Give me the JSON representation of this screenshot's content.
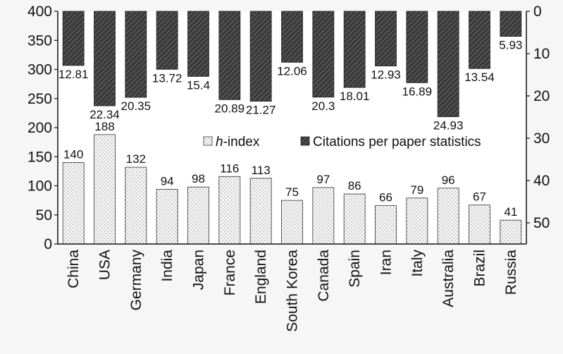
{
  "chart_data": {
    "type": "bar",
    "title": "",
    "categories": [
      "China",
      "USA",
      "Germany",
      "India",
      "Japan",
      "France",
      "England",
      "South Korea",
      "Canada",
      "Spain",
      "Iran",
      "Italy",
      "Australia",
      "Brazil",
      "Russia"
    ],
    "series": [
      {
        "name": "h-index",
        "name_prefix": "h",
        "name_suffix": "-index",
        "axis": "left",
        "values": [
          140,
          188,
          132,
          94,
          98,
          116,
          113,
          75,
          97,
          86,
          66,
          79,
          96,
          67,
          41
        ],
        "labels": [
          "140",
          "188",
          "132",
          "94",
          "98",
          "116",
          "113",
          "75",
          "97",
          "86",
          "66",
          "79",
          "96",
          "67",
          "41"
        ],
        "style": "dotted"
      },
      {
        "name": "Citations per paper statistics",
        "axis": "right",
        "values": [
          12.81,
          22.34,
          20.35,
          13.72,
          15.4,
          20.89,
          21.27,
          12.06,
          20.3,
          18.01,
          12.93,
          16.89,
          24.93,
          13.54,
          5.93
        ],
        "labels": [
          "12.81",
          "22.34",
          "20.35",
          "13.72",
          "15.4",
          "20.89",
          "21.27",
          "12.06",
          "20.3",
          "18.01",
          "12.93",
          "16.89",
          "24.93",
          "13.54",
          "5.93"
        ],
        "style": "hatched-dark"
      }
    ],
    "left_axis": {
      "ylim": [
        0,
        400
      ],
      "ticks": [
        "0",
        "50",
        "100",
        "150",
        "200",
        "250",
        "300",
        "350",
        "400"
      ]
    },
    "right_axis": {
      "ylim": [
        0,
        55
      ],
      "inverted": true,
      "ticks": [
        "0",
        "10",
        "20",
        "30",
        "40",
        "50"
      ]
    },
    "xlabel": "",
    "ylabel": "",
    "legend_position": "center-right",
    "grid": false
  }
}
